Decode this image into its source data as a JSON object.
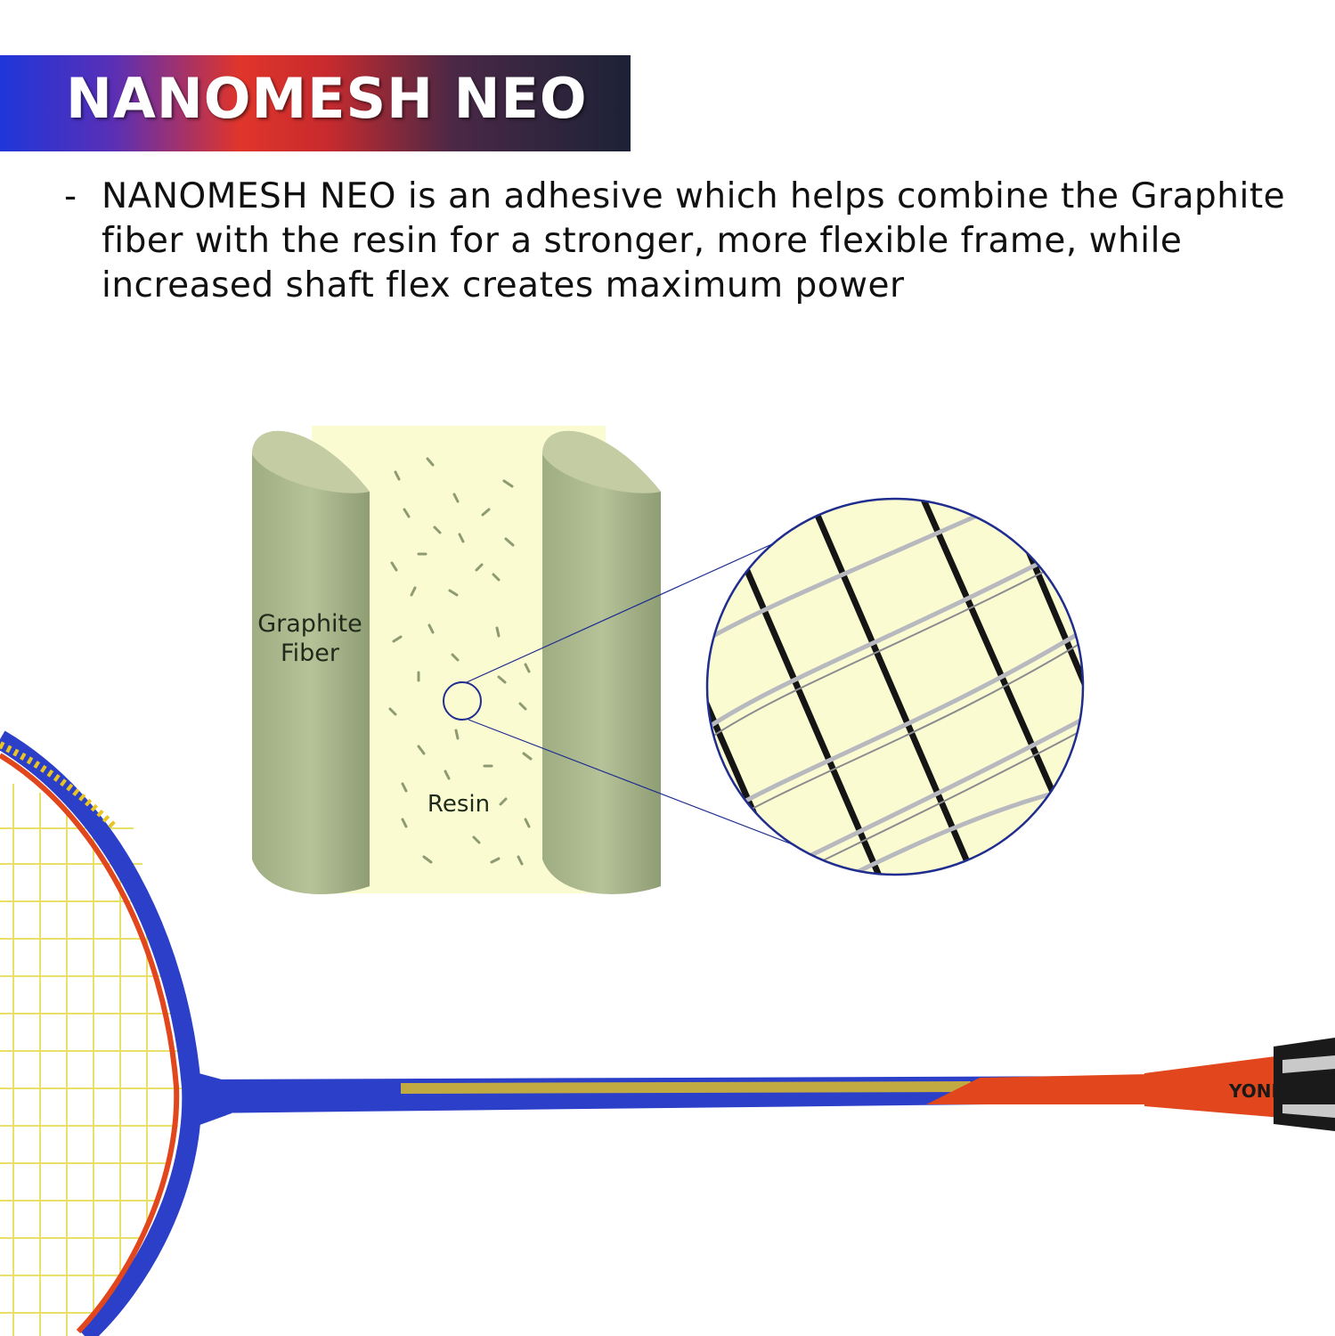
{
  "header": {
    "title": "NANOMESH NEO"
  },
  "description": {
    "bullet": "-",
    "text": "NANOMESH NEO is an adhesive which helps combine the Graphite fiber with the resin for a stronger, more flexible frame, while increased shaft flex creates maximum power"
  },
  "diagram": {
    "graphite_label": "Graphite Fiber",
    "resin_label": "Resin"
  },
  "racket": {
    "brand": "YONEX"
  },
  "colors": {
    "fiber_green": "#a7b58a",
    "resin_yellow": "#fbfbd2",
    "outline_blue": "#1f2d8f",
    "frame_blue": "#2b3fc9",
    "frame_orange": "#e2461c"
  }
}
